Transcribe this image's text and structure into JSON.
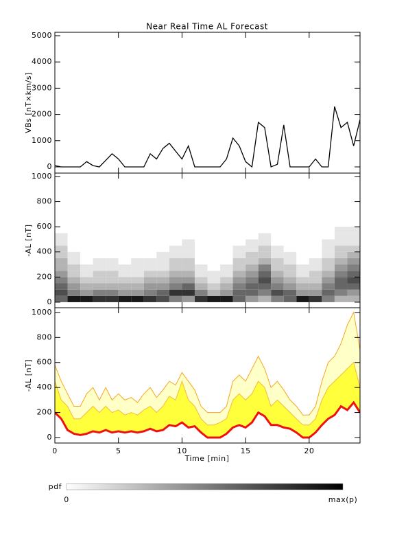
{
  "chart_data": [
    {
      "type": "line",
      "title": "Near Real Time AL Forecast",
      "ylabel": "VBs [nT×km/s]",
      "color": "#000000",
      "xlim": [
        0,
        24
      ],
      "ylim": [
        -236,
        5131
      ],
      "yticks": [
        0,
        1000,
        2000,
        3000,
        4000,
        5000
      ],
      "x": [
        0,
        0.5,
        1,
        1.5,
        2,
        2.5,
        3,
        3.5,
        4,
        4.5,
        5,
        5.5,
        6,
        6.5,
        7,
        7.5,
        8,
        8.5,
        9,
        9.5,
        10,
        10.5,
        11,
        11.5,
        12,
        12.5,
        13,
        13.5,
        14,
        14.5,
        15,
        15.5,
        16,
        16.5,
        17,
        17.5,
        18,
        18.5,
        19,
        19.5,
        20,
        20.5,
        21,
        21.5,
        22,
        22.5,
        23,
        23.5,
        24
      ],
      "values": [
        50,
        0,
        0,
        0,
        0,
        200,
        50,
        0,
        250,
        500,
        300,
        0,
        0,
        0,
        0,
        500,
        300,
        700,
        900,
        600,
        300,
        800,
        0,
        0,
        0,
        0,
        0,
        300,
        1100,
        800,
        200,
        0,
        1700,
        1500,
        0,
        100,
        1600,
        0,
        0,
        0,
        0,
        300,
        0,
        0,
        2300,
        1500,
        1700,
        800,
        1800
      ]
    },
    {
      "type": "heatmap",
      "ylabel": "-AL [nT]",
      "xlim": [
        0,
        24
      ],
      "ylim": [
        -44,
        1027
      ],
      "yticks": [
        0,
        200,
        400,
        600,
        800,
        1000
      ],
      "xbins": [
        0,
        1,
        2,
        3,
        4,
        5,
        6,
        7,
        8,
        9,
        10,
        11,
        12,
        13,
        14,
        15,
        16,
        17,
        18,
        19,
        20,
        21,
        22,
        23,
        24
      ],
      "ybins": [
        0,
        50,
        100,
        150,
        200,
        250,
        300,
        350,
        400,
        450,
        500,
        550,
        600
      ],
      "z": [
        [
          0.6,
          0.7,
          0.6,
          0.5,
          0.4,
          0.3,
          0.3,
          0.2,
          0.2,
          0.1,
          0.1,
          0
        ],
        [
          0.9,
          0.5,
          0.4,
          0.3,
          0.2,
          0.2,
          0.1,
          0.1,
          0,
          0,
          0,
          0
        ],
        [
          0.9,
          0.4,
          0.3,
          0.2,
          0.1,
          0.1,
          0,
          0,
          0,
          0,
          0,
          0
        ],
        [
          0.8,
          0.5,
          0.3,
          0.2,
          0.2,
          0.1,
          0.1,
          0,
          0,
          0,
          0,
          0
        ],
        [
          0.8,
          0.5,
          0.3,
          0.2,
          0.2,
          0.1,
          0.1,
          0,
          0,
          0,
          0,
          0
        ],
        [
          0.9,
          0.4,
          0.3,
          0.2,
          0.1,
          0.1,
          0,
          0,
          0,
          0,
          0,
          0
        ],
        [
          0.9,
          0.4,
          0.3,
          0.2,
          0.1,
          0.1,
          0.1,
          0,
          0,
          0,
          0,
          0
        ],
        [
          0.8,
          0.5,
          0.4,
          0.3,
          0.2,
          0.1,
          0.1,
          0,
          0,
          0,
          0,
          0
        ],
        [
          0.7,
          0.6,
          0.4,
          0.3,
          0.2,
          0.1,
          0.1,
          0.1,
          0,
          0,
          0,
          0
        ],
        [
          0.5,
          0.8,
          0.5,
          0.4,
          0.3,
          0.2,
          0.2,
          0.1,
          0.1,
          0,
          0,
          0
        ],
        [
          0.4,
          0.8,
          0.6,
          0.4,
          0.3,
          0.2,
          0.2,
          0.1,
          0.1,
          0.1,
          0,
          0
        ],
        [
          0.8,
          0.5,
          0.3,
          0.2,
          0.1,
          0.1,
          0,
          0,
          0,
          0,
          0,
          0
        ],
        [
          0.9,
          0.3,
          0.2,
          0.1,
          0.1,
          0,
          0,
          0,
          0,
          0,
          0,
          0
        ],
        [
          0.9,
          0.4,
          0.3,
          0.2,
          0.1,
          0.1,
          0,
          0,
          0,
          0,
          0,
          0
        ],
        [
          0.6,
          0.6,
          0.5,
          0.4,
          0.3,
          0.2,
          0.2,
          0.1,
          0.1,
          0,
          0,
          0
        ],
        [
          0.4,
          0.6,
          0.6,
          0.5,
          0.4,
          0.3,
          0.2,
          0.2,
          0.1,
          0.1,
          0,
          0
        ],
        [
          0.3,
          0.5,
          0.6,
          0.7,
          0.6,
          0.5,
          0.3,
          0.2,
          0.2,
          0.1,
          0.1,
          0
        ],
        [
          0.5,
          0.7,
          0.5,
          0.4,
          0.3,
          0.2,
          0.2,
          0.1,
          0.1,
          0,
          0,
          0
        ],
        [
          0.6,
          0.6,
          0.4,
          0.3,
          0.2,
          0.2,
          0.1,
          0.1,
          0,
          0,
          0,
          0
        ],
        [
          0.9,
          0.4,
          0.3,
          0.2,
          0.1,
          0.1,
          0,
          0,
          0,
          0,
          0,
          0
        ],
        [
          0.8,
          0.4,
          0.3,
          0.2,
          0.2,
          0.1,
          0.1,
          0,
          0,
          0,
          0,
          0
        ],
        [
          0.5,
          0.6,
          0.5,
          0.4,
          0.3,
          0.2,
          0.2,
          0.1,
          0.1,
          0.1,
          0,
          0
        ],
        [
          0.3,
          0.5,
          0.6,
          0.6,
          0.5,
          0.4,
          0.3,
          0.2,
          0.2,
          0.1,
          0.1,
          0.1
        ],
        [
          0.3,
          0.4,
          0.6,
          0.7,
          0.6,
          0.5,
          0.4,
          0.3,
          0.2,
          0.1,
          0.1,
          0.1
        ]
      ]
    },
    {
      "type": "area",
      "ylabel": "-AL [nT]",
      "xlabel": "Time [min]",
      "xlim": [
        0,
        24
      ],
      "ylim": [
        -44,
        1038
      ],
      "yticks": [
        0,
        200,
        400,
        600,
        800,
        1000
      ],
      "xticks": [
        0,
        5,
        10,
        15,
        20
      ],
      "x": [
        0,
        0.5,
        1,
        1.5,
        2,
        2.5,
        3,
        3.5,
        4,
        4.5,
        5,
        5.5,
        6,
        6.5,
        7,
        7.5,
        8,
        8.5,
        9,
        9.5,
        10,
        10.5,
        11,
        11.5,
        12,
        12.5,
        13,
        13.5,
        14,
        14.5,
        15,
        15.5,
        16,
        16.5,
        17,
        17.5,
        18,
        18.5,
        19,
        19.5,
        20,
        20.5,
        21,
        21.5,
        22,
        22.5,
        23,
        23.5,
        24
      ],
      "series": [
        {
          "color": "#f5a623",
          "fill": "#ffffc8",
          "width": 1,
          "values": [
            580,
            450,
            350,
            250,
            250,
            350,
            400,
            300,
            400,
            300,
            350,
            300,
            320,
            280,
            350,
            400,
            320,
            380,
            450,
            420,
            520,
            450,
            380,
            250,
            200,
            200,
            200,
            250,
            450,
            500,
            450,
            550,
            650,
            550,
            400,
            450,
            380,
            300,
            250,
            180,
            180,
            250,
            450,
            600,
            650,
            750,
            900,
            1000,
            700
          ]
        },
        {
          "color": "#f5b840",
          "fill": "#ffff3c",
          "width": 1,
          "values": [
            450,
            300,
            250,
            150,
            150,
            200,
            250,
            200,
            250,
            200,
            220,
            180,
            200,
            180,
            220,
            250,
            200,
            250,
            330,
            300,
            450,
            300,
            250,
            150,
            100,
            100,
            120,
            150,
            300,
            350,
            300,
            350,
            450,
            400,
            250,
            300,
            250,
            200,
            150,
            100,
            100,
            150,
            300,
            400,
            450,
            500,
            550,
            600,
            400
          ]
        },
        {
          "color": "#ee1111",
          "fill": "#ffffff",
          "width": 3,
          "values": [
            200,
            150,
            60,
            30,
            20,
            30,
            50,
            40,
            60,
            40,
            50,
            40,
            50,
            40,
            50,
            70,
            50,
            60,
            100,
            90,
            120,
            80,
            90,
            40,
            0,
            0,
            0,
            30,
            80,
            100,
            80,
            120,
            200,
            170,
            100,
            100,
            80,
            70,
            40,
            0,
            0,
            40,
            100,
            150,
            180,
            250,
            220,
            280,
            200
          ]
        }
      ]
    }
  ],
  "colorbar": {
    "label": "pdf",
    "min_label": "0",
    "max_label": "max(p)"
  }
}
